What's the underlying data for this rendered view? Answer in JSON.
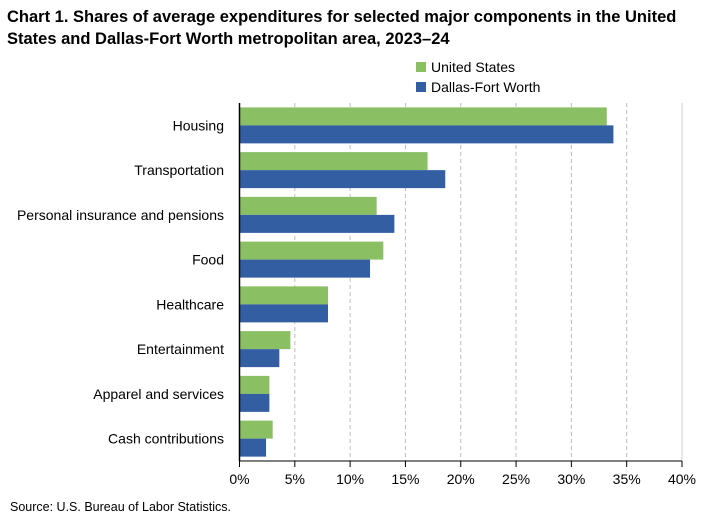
{
  "chart_data": {
    "type": "bar",
    "orientation": "horizontal",
    "title": "Chart 1. Shares of average expenditures for selected major components in the United States and Dallas-Fort Worth metropolitan area, 2023–24",
    "categories": [
      "Housing",
      "Transportation",
      "Personal insurance and pensions",
      "Food",
      "Healthcare",
      "Entertainment",
      "Apparel and services",
      "Cash contributions"
    ],
    "series": [
      {
        "name": "United States",
        "color": "#8bbf63",
        "values": [
          33.2,
          17.0,
          12.4,
          13.0,
          8.0,
          4.6,
          2.7,
          3.0
        ]
      },
      {
        "name": "Dallas-Fort Worth",
        "color": "#335ea2",
        "values": [
          33.8,
          18.6,
          14.0,
          11.8,
          8.0,
          3.6,
          2.7,
          2.4
        ]
      }
    ],
    "xlim": [
      0,
      40
    ],
    "xticks": [
      0,
      5,
      10,
      15,
      20,
      25,
      30,
      35,
      40
    ],
    "xtick_labels": [
      "0%",
      "5%",
      "10%",
      "15%",
      "20%",
      "25%",
      "30%",
      "35%",
      "40%"
    ],
    "grid": "vertical dashed",
    "legend": "top-right",
    "source": "Source: U.S. Bureau of Labor Statistics."
  }
}
